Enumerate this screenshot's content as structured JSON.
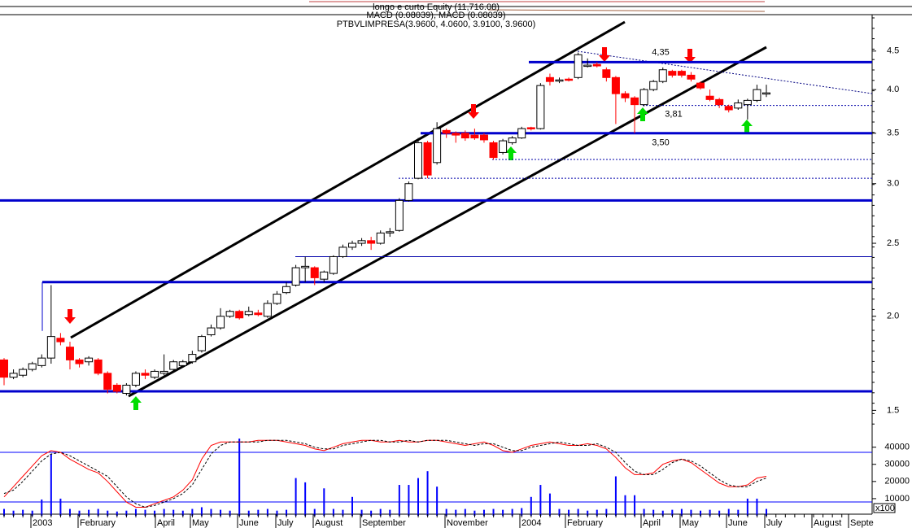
{
  "chart_data": {
    "type": "candlestick",
    "header": [
      "longo e curto Equity (11,716.08)",
      "MACD (0.08039), MACD (0.08039)"
    ],
    "title": "PTBVLIMPRESA(3.9600, 4.0600, 3.9100, 3.9600)",
    "x_labels": [
      "2003",
      "February",
      "April",
      "May",
      "June",
      "July",
      "August",
      "September",
      "November",
      "2004",
      "February",
      "April",
      "May",
      "June",
      "July",
      "August",
      "Septe"
    ],
    "log_scale": true,
    "ylim": [
      1.39,
      5.03
    ],
    "yticks": [
      1.5,
      {
        "value": 2,
        "label": "2.0"
      },
      2.5,
      {
        "value": 3,
        "label": "3.0"
      },
      3.5,
      {
        "value": 4,
        "label": "4.0"
      },
      4.5
    ],
    "up_color": "#ffffff",
    "down_color": "#ff0000",
    "open": [
      1.75,
      1.66,
      1.67,
      1.7,
      1.72,
      1.76,
      1.87,
      1.82,
      1.75,
      1.74,
      1.75,
      1.68,
      1.62,
      1.58,
      1.62,
      1.68,
      1.66,
      1.68,
      1.7,
      1.72,
      1.74,
      1.8,
      1.89,
      1.93,
      2.0,
      2.03,
      2.01,
      2.02,
      2.0,
      2.08,
      2.15,
      2.2,
      2.32,
      2.32,
      2.24,
      2.28,
      2.4,
      2.47,
      2.5,
      2.52,
      2.5,
      2.58,
      2.6,
      2.85,
      3.05,
      3.4,
      3.2,
      3.53,
      3.5,
      3.5,
      3.48,
      3.48,
      3.4,
      3.3,
      3.4,
      3.45,
      3.56,
      3.55,
      4.15,
      4.12,
      4.13,
      4.15,
      4.3,
      4.32,
      4.25,
      4.15,
      3.95,
      3.9,
      3.82,
      4.0,
      4.1,
      4.23,
      4.23,
      4.18,
      4.08,
      3.92,
      3.88,
      3.8,
      3.78,
      3.82,
      3.87,
      3.96
    ],
    "high": [
      1.76,
      1.7,
      1.71,
      1.74,
      1.78,
      2.2,
      1.9,
      1.85,
      1.76,
      1.77,
      1.76,
      1.69,
      1.63,
      1.63,
      1.69,
      1.7,
      1.7,
      1.78,
      1.75,
      1.75,
      1.8,
      1.89,
      1.95,
      2.05,
      2.04,
      2.04,
      2.06,
      2.04,
      2.1,
      2.16,
      2.22,
      2.34,
      2.4,
      2.33,
      2.3,
      2.41,
      2.49,
      2.52,
      2.54,
      2.55,
      2.6,
      2.62,
      2.87,
      3.02,
      3.45,
      3.42,
      3.62,
      3.55,
      3.52,
      3.53,
      3.55,
      3.5,
      3.42,
      3.44,
      3.47,
      3.57,
      3.57,
      4.08,
      4.2,
      4.15,
      4.15,
      4.48,
      4.4,
      4.35,
      4.28,
      4.17,
      3.98,
      3.92,
      4.02,
      4.12,
      4.28,
      4.25,
      4.25,
      4.22,
      4.1,
      4.0,
      3.9,
      3.82,
      3.88,
      3.89,
      4.06,
      4.06
    ],
    "low": [
      1.62,
      1.65,
      1.66,
      1.69,
      1.71,
      1.73,
      1.83,
      1.7,
      1.71,
      1.72,
      1.67,
      1.58,
      1.58,
      1.57,
      1.61,
      1.65,
      1.65,
      1.67,
      1.69,
      1.71,
      1.73,
      1.79,
      1.88,
      1.92,
      1.99,
      1.98,
      2.0,
      2.0,
      1.99,
      2.07,
      2.14,
      2.19,
      2.22,
      2.2,
      2.22,
      2.27,
      2.39,
      2.45,
      2.48,
      2.45,
      2.49,
      2.55,
      2.59,
      2.84,
      3.04,
      3.05,
      3.18,
      3.45,
      3.4,
      3.42,
      3.43,
      3.4,
      3.23,
      3.28,
      3.38,
      3.44,
      3.53,
      3.54,
      4.05,
      4.08,
      4.1,
      4.13,
      4.28,
      4.28,
      4.1,
      3.6,
      3.85,
      3.5,
      3.8,
      3.98,
      4.08,
      4.15,
      4.15,
      4.1,
      4.0,
      3.86,
      3.78,
      3.73,
      3.76,
      3.65,
      3.85,
      3.91
    ],
    "close": [
      1.66,
      1.68,
      1.7,
      1.73,
      1.76,
      1.88,
      1.85,
      1.75,
      1.73,
      1.76,
      1.68,
      1.6,
      1.59,
      1.62,
      1.68,
      1.67,
      1.69,
      1.69,
      1.74,
      1.74,
      1.78,
      1.88,
      1.93,
      2.0,
      2.03,
      1.99,
      2.03,
      2.01,
      2.08,
      2.14,
      2.19,
      2.32,
      2.33,
      2.25,
      2.29,
      2.4,
      2.47,
      2.5,
      2.52,
      2.5,
      2.58,
      2.59,
      2.85,
      3.0,
      3.4,
      3.08,
      3.55,
      3.5,
      3.48,
      3.45,
      3.45,
      3.43,
      3.25,
      3.42,
      3.45,
      3.55,
      3.55,
      4.05,
      4.1,
      4.12,
      4.12,
      4.45,
      4.31,
      4.3,
      4.15,
      3.95,
      3.9,
      3.82,
      4.0,
      4.1,
      4.25,
      4.18,
      4.18,
      4.13,
      4.02,
      3.88,
      3.82,
      3.76,
      3.84,
      3.87,
      4.0,
      3.96
    ],
    "levels": [
      1.59,
      2.22,
      2.85,
      3.5,
      4.35,
      2.4,
      3.81,
      3.23,
      3.05
    ],
    "annotations": [
      {
        "value": 4.35,
        "label": "4,35"
      },
      {
        "value": 3.81,
        "label": "3,81"
      },
      {
        "value": 3.5,
        "label": "3,50"
      }
    ],
    "volume": {
      "color": "#0000ff",
      "ylim": [
        0,
        46000
      ],
      "yticks": [
        10000,
        20000,
        30000,
        40000
      ],
      "unit_label": "x100",
      "values": [
        4000,
        3000,
        3500,
        3000,
        9500,
        36000,
        10000,
        4000,
        3000,
        3500,
        4000,
        3000,
        2500,
        3000,
        4000,
        3500,
        3000,
        4000,
        3500,
        3000,
        4000,
        5000,
        4000,
        3500,
        3000,
        45000,
        3000,
        3500,
        4000,
        3000,
        3500,
        22000,
        19500,
        4000,
        16000,
        4000,
        3500,
        11000,
        3500,
        3000,
        4000,
        3500,
        18000,
        18000,
        22000,
        26000,
        17000,
        4000,
        3500,
        4000,
        3000,
        3500,
        4000,
        3500,
        4000,
        4500,
        11000,
        18000,
        13000,
        4000,
        3500,
        4000,
        3000,
        3500,
        4000,
        23000,
        12000,
        12000,
        4000,
        3500,
        3000,
        3500,
        4000,
        3500,
        3000,
        3500,
        3000,
        4000,
        3500,
        10000,
        10000,
        4000
      ]
    },
    "oscillator": {
      "series": [
        {
          "color": "#ff0000",
          "values": [
            11000,
            17000,
            23000,
            29000,
            35000,
            38000,
            37000,
            33000,
            30000,
            27000,
            25000,
            20000,
            14000,
            8000,
            5000,
            5000,
            7000,
            9000,
            11000,
            15000,
            21000,
            33000,
            41000,
            43000,
            43000,
            43000,
            43000,
            44000,
            44000,
            44000,
            43000,
            42000,
            41000,
            39000,
            38000,
            40000,
            42000,
            43000,
            44000,
            44000,
            43000,
            43000,
            44000,
            43000,
            43000,
            44000,
            44000,
            43000,
            42000,
            41000,
            42000,
            43000,
            41000,
            38000,
            37000,
            39000,
            41000,
            42000,
            43000,
            42000,
            41000,
            41000,
            42000,
            41000,
            39000,
            34000,
            28000,
            24000,
            24000,
            25000,
            30000,
            32000,
            33000,
            31000,
            27000,
            23000,
            19000,
            17000,
            17000,
            18000,
            22000,
            23000
          ]
        },
        {
          "color": "#000000",
          "values": [
            13000,
            15000,
            20000,
            26000,
            32000,
            36000,
            37000,
            35000,
            32000,
            29000,
            26000,
            23000,
            17000,
            11000,
            7000,
            5000,
            6000,
            8000,
            10000,
            13000,
            18000,
            27000,
            36000,
            41000,
            43000,
            43000,
            43000,
            43000,
            44000,
            44000,
            44000,
            43000,
            42000,
            40000,
            39000,
            39000,
            41000,
            42000,
            43000,
            44000,
            44000,
            43000,
            43000,
            44000,
            43000,
            44000,
            44000,
            44000,
            43000,
            42000,
            41000,
            42000,
            42000,
            40000,
            38000,
            38000,
            40000,
            41000,
            42000,
            43000,
            42000,
            41000,
            41000,
            42000,
            40000,
            37000,
            31000,
            26000,
            24000,
            24000,
            27000,
            31000,
            33000,
            32000,
            29000,
            25000,
            21000,
            18000,
            17000,
            17000,
            20000,
            22000
          ]
        }
      ]
    }
  }
}
